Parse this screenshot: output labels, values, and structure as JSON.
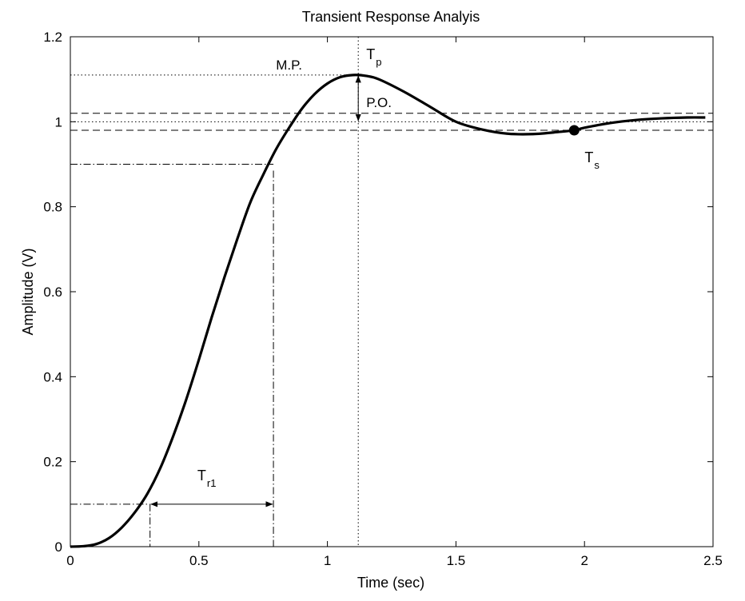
{
  "chart_data": {
    "type": "line",
    "title": "Transient Response Analyis",
    "xlabel": "Time (sec)",
    "ylabel": "Amplitude (V)",
    "xlim": [
      0,
      2.5
    ],
    "ylim": [
      0,
      1.2
    ],
    "xticks": [
      "0",
      "0.5",
      "1",
      "1.5",
      "2",
      "2.5"
    ],
    "yticks": [
      "0",
      "0.2",
      "0.4",
      "0.6",
      "0.8",
      "1",
      "1.2"
    ],
    "grid": false,
    "series": [
      {
        "x": [
          0,
          0.05,
          0.1,
          0.15,
          0.2,
          0.25,
          0.3,
          0.35,
          0.4,
          0.45,
          0.5,
          0.55,
          0.6,
          0.65,
          0.7,
          0.75,
          0.8,
          0.85,
          0.9,
          0.95,
          1.0,
          1.05,
          1.1,
          1.15,
          1.2,
          1.3,
          1.4,
          1.5,
          1.6,
          1.7,
          1.8,
          1.9,
          1.96,
          2.0,
          2.1,
          2.2,
          2.3,
          2.4,
          2.47
        ],
        "y": [
          0,
          0.001,
          0.006,
          0.02,
          0.045,
          0.08,
          0.125,
          0.185,
          0.26,
          0.345,
          0.44,
          0.54,
          0.635,
          0.725,
          0.81,
          0.875,
          0.935,
          0.985,
          1.03,
          1.065,
          1.09,
          1.105,
          1.11,
          1.108,
          1.1,
          1.07,
          1.035,
          1.0,
          0.982,
          0.972,
          0.971,
          0.976,
          0.98,
          0.986,
          0.997,
          1.004,
          1.008,
          1.01,
          1.01
        ]
      }
    ],
    "reference_lines": {
      "final_value": 1.0,
      "tolerance_band": [
        0.98,
        1.02
      ],
      "peak_value": 1.11,
      "peak_time": 1.12,
      "level_10pct": 0.1,
      "level_90pct": 0.9,
      "t10": 0.31,
      "t90": 0.79,
      "settling_time": 1.96,
      "settling_value": 0.98
    },
    "annotations": {
      "mp": "M.P.",
      "tp": "T",
      "tp_sub": "p",
      "po": "P.O.",
      "ts": "T",
      "ts_sub": "s",
      "tr": "T",
      "tr_sub": "r1"
    }
  }
}
